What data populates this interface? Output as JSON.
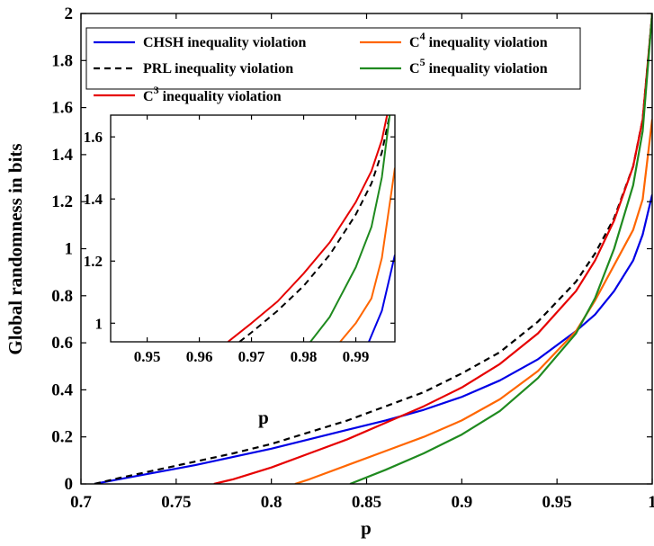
{
  "chart_data": [
    {
      "type": "line",
      "xlabel": "p",
      "ylabel": "Global randomness in bits",
      "xlim": [
        0.7,
        1.0
      ],
      "ylim": [
        0,
        2
      ],
      "xticks": [
        0.7,
        0.75,
        0.8,
        0.85,
        0.9,
        0.95,
        1
      ],
      "xtick_labels": [
        "0.7",
        "0.75",
        "0.8",
        "0.85",
        "0.9",
        "0.95",
        "1"
      ],
      "yticks": [
        0,
        0.2,
        0.4,
        0.6,
        0.8,
        1,
        1.2,
        1.4,
        1.6,
        1.8,
        2
      ],
      "ytick_labels": [
        "0",
        "0.2",
        "0.4",
        "0.6",
        "0.8",
        "1",
        "1.2",
        "1.4",
        "1.6",
        "1.8",
        "2"
      ],
      "grid": false,
      "legend_position": "top",
      "series": [
        {
          "name": "CHSH inequality violation",
          "color": "#0000e6",
          "dash": "solid",
          "x": [
            0.7071,
            0.72,
            0.74,
            0.76,
            0.78,
            0.8,
            0.82,
            0.84,
            0.86,
            0.88,
            0.9,
            0.92,
            0.94,
            0.96,
            0.97,
            0.98,
            0.99,
            0.995,
            1.0
          ],
          "y": [
            0.0,
            0.02,
            0.05,
            0.08,
            0.115,
            0.15,
            0.19,
            0.23,
            0.27,
            0.315,
            0.37,
            0.44,
            0.53,
            0.65,
            0.72,
            0.82,
            0.95,
            1.06,
            1.23
          ]
        },
        {
          "name": "PRL inequality violation",
          "color": "#000000",
          "dash": "dashed",
          "x": [
            0.7071,
            0.72,
            0.74,
            0.76,
            0.78,
            0.8,
            0.82,
            0.84,
            0.86,
            0.88,
            0.9,
            0.92,
            0.94,
            0.96,
            0.97,
            0.98,
            0.99,
            0.995,
            1.0
          ],
          "y": [
            0.0,
            0.025,
            0.06,
            0.095,
            0.13,
            0.17,
            0.22,
            0.27,
            0.33,
            0.39,
            0.47,
            0.56,
            0.69,
            0.86,
            0.98,
            1.13,
            1.35,
            1.55,
            2.0
          ]
        },
        {
          "name": "C^3 inequality violation",
          "color": "#e60000",
          "dash": "solid",
          "x": [
            0.7698,
            0.78,
            0.8,
            0.82,
            0.84,
            0.86,
            0.88,
            0.9,
            0.92,
            0.94,
            0.96,
            0.97,
            0.98,
            0.99,
            0.995,
            1.0
          ],
          "y": [
            0.0,
            0.02,
            0.07,
            0.13,
            0.19,
            0.26,
            0.33,
            0.41,
            0.51,
            0.64,
            0.82,
            0.95,
            1.12,
            1.35,
            1.55,
            2.0
          ]
        },
        {
          "name": "C^4 inequality violation",
          "color": "#ff6600",
          "dash": "solid",
          "x": [
            0.8124,
            0.82,
            0.84,
            0.86,
            0.88,
            0.9,
            0.92,
            0.94,
            0.96,
            0.97,
            0.98,
            0.99,
            0.995,
            1.0
          ],
          "y": [
            0.0,
            0.02,
            0.08,
            0.14,
            0.2,
            0.27,
            0.36,
            0.48,
            0.65,
            0.78,
            0.93,
            1.08,
            1.21,
            1.55
          ]
        },
        {
          "name": "C^5 inequality violation",
          "color": "#1f8a1f",
          "dash": "solid",
          "x": [
            0.8413,
            0.86,
            0.88,
            0.9,
            0.92,
            0.94,
            0.96,
            0.97,
            0.98,
            0.99,
            0.995,
            1.0
          ],
          "y": [
            0.0,
            0.06,
            0.13,
            0.21,
            0.31,
            0.45,
            0.64,
            0.79,
            1.0,
            1.27,
            1.5,
            2.0
          ]
        }
      ]
    },
    {
      "type": "line",
      "xlabel": "p",
      "ylabel": "",
      "xlim": [
        0.943,
        0.9975
      ],
      "ylim": [
        0.94,
        1.67
      ],
      "xticks": [
        0.95,
        0.96,
        0.97,
        0.98,
        0.99
      ],
      "xtick_labels": [
        "0.95",
        "0.96",
        "0.97",
        "0.98",
        "0.99"
      ],
      "yticks": [
        1,
        1.2,
        1.4,
        1.6
      ],
      "ytick_labels": [
        "1",
        "1.2",
        "1.4",
        "1.6"
      ],
      "grid": false,
      "series": [
        {
          "color": "#0000e6",
          "dash": "solid",
          "x": [
            0.9925,
            0.995,
            0.9975
          ],
          "y": [
            0.94,
            1.04,
            1.22
          ]
        },
        {
          "color": "#000000",
          "dash": "dashed",
          "x": [
            0.9677,
            0.97,
            0.975,
            0.98,
            0.985,
            0.99,
            0.993,
            0.995,
            0.9965
          ],
          "y": [
            0.94,
            0.97,
            1.04,
            1.12,
            1.22,
            1.35,
            1.45,
            1.55,
            1.67
          ]
        },
        {
          "color": "#e60000",
          "dash": "solid",
          "x": [
            0.9655,
            0.97,
            0.975,
            0.98,
            0.985,
            0.99,
            0.993,
            0.995,
            0.996
          ],
          "y": [
            0.94,
            1.0,
            1.07,
            1.16,
            1.26,
            1.39,
            1.49,
            1.59,
            1.67
          ]
        },
        {
          "color": "#ff6600",
          "dash": "solid",
          "x": [
            0.987,
            0.99,
            0.993,
            0.995,
            0.9975
          ],
          "y": [
            0.94,
            1.0,
            1.08,
            1.21,
            1.5
          ]
        },
        {
          "color": "#1f8a1f",
          "dash": "solid",
          "x": [
            0.9813,
            0.985,
            0.99,
            0.993,
            0.995,
            0.9965
          ],
          "y": [
            0.94,
            1.02,
            1.18,
            1.31,
            1.47,
            1.67
          ]
        }
      ]
    }
  ],
  "legend": {
    "entries": [
      {
        "text": "CHSH inequality violation",
        "sup": "",
        "rest": ""
      },
      {
        "text": "PRL inequality violation",
        "sup": "",
        "rest": ""
      },
      {
        "text": "C",
        "sup": "3",
        "rest": " inequality violation"
      },
      {
        "text": "C",
        "sup": "4",
        "rest": " inequality violation"
      },
      {
        "text": "C",
        "sup": "5",
        "rest": " inequality violation"
      }
    ]
  }
}
